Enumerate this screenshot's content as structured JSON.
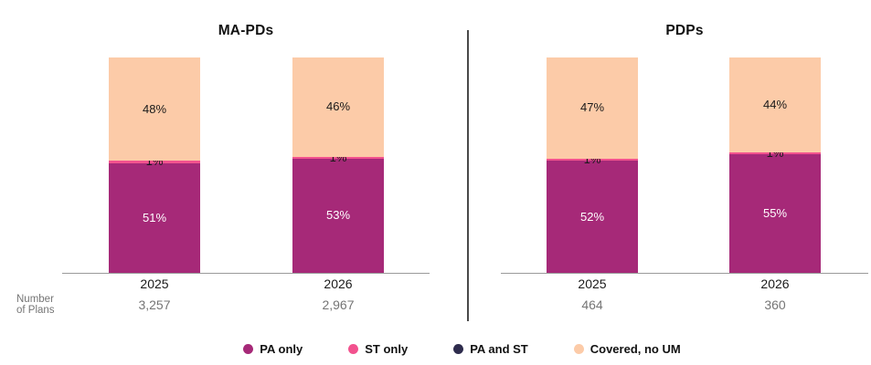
{
  "colors": {
    "pa_only": "#A62978",
    "st_only": "#F2528E",
    "pa_and_st": "#2E2C4D",
    "covered_no_um": "#FCCBA8",
    "axis_line": "#9B9B9B",
    "panel_divider": "#4A4A4A",
    "muted_text": "#757575",
    "label_dark": "#1A1A1A",
    "label_light": "#FFFFFF"
  },
  "left_axis_label": {
    "line1": "Number",
    "line2": "of Plans"
  },
  "legend": [
    {
      "label": "PA only",
      "color_key": "pa_only"
    },
    {
      "label": "ST only",
      "color_key": "st_only"
    },
    {
      "label": "PA and ST",
      "color_key": "pa_and_st"
    },
    {
      "label": "Covered, no UM",
      "color_key": "covered_no_um"
    }
  ],
  "chart_data": {
    "type": "bar",
    "stacked": true,
    "unit": "%",
    "ylim": [
      0,
      100
    ],
    "grid": false,
    "legend_position": "bottom",
    "segment_order_bottom_to_top": [
      "pa_only",
      "st_only",
      "pa_and_st",
      "covered_no_um"
    ],
    "panels": [
      {
        "title": "MA-PDs",
        "bars": [
          {
            "year": "2025",
            "n_plans": "3,257",
            "values": {
              "pa_only": 51,
              "st_only": 1,
              "pa_and_st": 0,
              "covered_no_um": 48
            },
            "labels": {
              "pa_only": "51%",
              "st_only": "1%",
              "covered_no_um": "48%"
            }
          },
          {
            "year": "2026",
            "n_plans": "2,967",
            "values": {
              "pa_only": 53,
              "st_only": 1,
              "pa_and_st": 0,
              "covered_no_um": 46
            },
            "labels": {
              "pa_only": "53%",
              "st_only": "1%",
              "covered_no_um": "46%"
            }
          }
        ]
      },
      {
        "title": "PDPs",
        "bars": [
          {
            "year": "2025",
            "n_plans": "464",
            "values": {
              "pa_only": 52,
              "st_only": 1,
              "pa_and_st": 0,
              "covered_no_um": 47
            },
            "labels": {
              "pa_only": "52%",
              "st_only": "1%",
              "covered_no_um": "47%"
            }
          },
          {
            "year": "2026",
            "n_plans": "360",
            "values": {
              "pa_only": 55,
              "st_only": 1,
              "pa_and_st": 0,
              "covered_no_um": 44
            },
            "labels": {
              "pa_only": "55%",
              "st_only": "1%",
              "covered_no_um": "44%"
            }
          }
        ]
      }
    ]
  }
}
